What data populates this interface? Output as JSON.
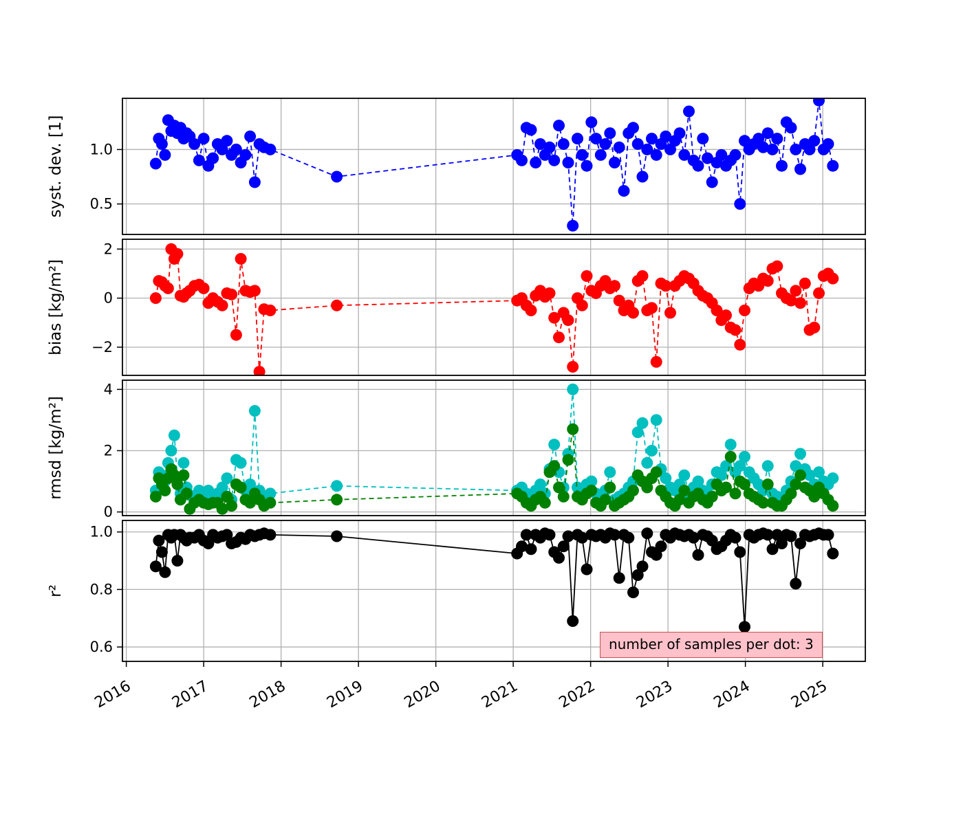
{
  "figure": {
    "background": "#ffffff",
    "annotation": {
      "text": "number of samples per dot: 3",
      "facecolor": "#ffc2cb",
      "edgecolor": "#c94f4f"
    }
  },
  "chart_data": {
    "type": "scatter",
    "title": "",
    "xlabel": "",
    "grid": true,
    "xlim": [
      2015.95,
      2025.55
    ],
    "xticks": [
      2016,
      2017,
      2018,
      2019,
      2020,
      2021,
      2022,
      2023,
      2024,
      2025
    ],
    "x": [
      2016.38,
      2016.42,
      2016.46,
      2016.5,
      2016.54,
      2016.58,
      2016.62,
      2016.66,
      2016.7,
      2016.74,
      2016.78,
      2016.82,
      2016.88,
      2016.94,
      2017.0,
      2017.06,
      2017.12,
      2017.18,
      2017.24,
      2017.3,
      2017.36,
      2017.42,
      2017.48,
      2017.54,
      2017.6,
      2017.66,
      2017.72,
      2017.78,
      2017.86,
      2018.72,
      2021.05,
      2021.11,
      2021.17,
      2021.23,
      2021.29,
      2021.35,
      2021.41,
      2021.47,
      2021.53,
      2021.59,
      2021.65,
      2021.71,
      2021.77,
      2021.83,
      2021.89,
      2021.95,
      2022.01,
      2022.07,
      2022.13,
      2022.19,
      2022.25,
      2022.31,
      2022.37,
      2022.43,
      2022.49,
      2022.55,
      2022.61,
      2022.67,
      2022.73,
      2022.79,
      2022.85,
      2022.91,
      2022.97,
      2023.03,
      2023.09,
      2023.15,
      2023.21,
      2023.27,
      2023.33,
      2023.39,
      2023.45,
      2023.51,
      2023.57,
      2023.63,
      2023.69,
      2023.75,
      2023.81,
      2023.87,
      2023.93,
      2023.99,
      2024.05,
      2024.11,
      2024.17,
      2024.23,
      2024.29,
      2024.35,
      2024.41,
      2024.47,
      2024.53,
      2024.59,
      2024.65,
      2024.71,
      2024.77,
      2024.83,
      2024.89,
      2024.95,
      2025.01,
      2025.07,
      2025.13
    ],
    "panels": [
      {
        "ylabel": "syst. dev. [1]",
        "ylim": [
          0.22,
          1.47
        ],
        "yticks": [
          0.5,
          1.0
        ],
        "yticklabels": [
          "0.5",
          "1.0"
        ],
        "series": [
          {
            "name": "syst_dev",
            "color": "#0000ff",
            "linestyle": "dashed",
            "marker": "o",
            "values": [
              0.87,
              1.1,
              1.05,
              0.95,
              1.27,
              1.17,
              1.22,
              1.15,
              1.2,
              1.1,
              1.15,
              1.12,
              1.05,
              0.9,
              1.1,
              0.85,
              0.92,
              1.05,
              1.0,
              1.08,
              0.95,
              1.0,
              0.88,
              0.95,
              1.12,
              0.7,
              1.05,
              1.02,
              1.0,
              0.75,
              0.95,
              0.9,
              1.2,
              1.18,
              0.88,
              1.05,
              0.95,
              1.02,
              0.9,
              1.22,
              1.05,
              0.88,
              0.3,
              1.1,
              0.95,
              0.85,
              1.25,
              1.1,
              0.95,
              1.05,
              1.15,
              0.88,
              1.02,
              0.62,
              1.15,
              1.2,
              1.05,
              0.75,
              1.0,
              1.1,
              0.95,
              1.05,
              1.12,
              1.0,
              1.08,
              1.15,
              0.95,
              1.35,
              0.9,
              0.85,
              1.1,
              0.92,
              0.7,
              0.88,
              0.95,
              0.85,
              0.9,
              0.95,
              0.5,
              1.08,
              1.0,
              1.05,
              1.1,
              1.02,
              1.15,
              1.0,
              1.1,
              0.85,
              1.25,
              1.2,
              1.0,
              0.82,
              1.05,
              1.0,
              1.08,
              1.45,
              1.0,
              1.05,
              0.85
            ]
          }
        ]
      },
      {
        "ylabel": "bias [kg/m²]",
        "ylim": [
          -3.15,
          2.4
        ],
        "yticks": [
          -2,
          0,
          2
        ],
        "yticklabels": [
          "−2",
          "0",
          "2"
        ],
        "series": [
          {
            "name": "bias",
            "color": "#ff0000",
            "linestyle": "dashed",
            "marker": "o",
            "values": [
              0.0,
              0.7,
              0.65,
              0.5,
              0.4,
              2.0,
              1.6,
              1.8,
              0.1,
              0.05,
              0.2,
              0.3,
              0.5,
              0.55,
              0.4,
              -0.2,
              0.0,
              -0.15,
              -0.3,
              0.2,
              0.15,
              -1.5,
              1.6,
              0.3,
              0.25,
              0.3,
              -3.0,
              -0.45,
              -0.5,
              -0.3,
              -0.1,
              0.0,
              -0.3,
              -0.5,
              0.1,
              0.3,
              0.05,
              0.2,
              -0.8,
              -1.6,
              -0.6,
              -0.9,
              -2.8,
              0.0,
              -0.3,
              0.9,
              0.3,
              0.2,
              0.5,
              0.7,
              0.4,
              0.5,
              -0.1,
              -0.5,
              -0.3,
              -0.6,
              0.7,
              0.9,
              -0.5,
              -0.4,
              -2.6,
              0.6,
              0.5,
              -0.6,
              0.5,
              0.7,
              0.9,
              0.8,
              0.6,
              0.3,
              0.1,
              0.0,
              -0.2,
              -0.5,
              -0.9,
              -0.7,
              -1.2,
              -1.3,
              -1.9,
              -0.5,
              0.4,
              0.6,
              0.5,
              0.8,
              0.7,
              1.2,
              1.3,
              0.2,
              0.0,
              -0.1,
              0.3,
              -0.2,
              0.6,
              -1.3,
              -1.2,
              0.2,
              0.9,
              1.0,
              0.8
            ]
          }
        ]
      },
      {
        "ylabel": "rmsd [kg/m²]",
        "ylim": [
          -0.12,
          4.3
        ],
        "yticks": [
          0,
          2,
          4
        ],
        "yticklabels": [
          "0",
          "2",
          "4"
        ],
        "series": [
          {
            "name": "rmsd",
            "color": "#00bfbf",
            "linestyle": "dashed",
            "marker": "o",
            "values": [
              0.7,
              1.3,
              1.2,
              1.0,
              1.6,
              2.0,
              2.5,
              1.1,
              0.6,
              1.6,
              0.8,
              0.55,
              0.5,
              0.7,
              0.6,
              0.7,
              0.5,
              0.6,
              0.8,
              1.1,
              0.4,
              1.7,
              1.6,
              0.7,
              0.9,
              3.3,
              0.7,
              0.5,
              0.6,
              0.85,
              0.7,
              0.8,
              0.6,
              0.5,
              0.7,
              0.9,
              0.6,
              1.4,
              2.2,
              1.3,
              0.8,
              1.9,
              4.0,
              0.8,
              0.7,
              0.9,
              1.0,
              0.6,
              0.5,
              0.7,
              1.3,
              0.4,
              0.5,
              0.6,
              0.8,
              1.0,
              2.6,
              2.9,
              1.6,
              2.0,
              3.0,
              1.4,
              1.1,
              0.8,
              0.7,
              0.9,
              1.2,
              0.6,
              0.8,
              1.0,
              0.7,
              0.6,
              0.9,
              1.3,
              1.2,
              1.5,
              2.2,
              1.3,
              1.5,
              1.8,
              1.3,
              1.1,
              0.9,
              0.7,
              1.5,
              0.6,
              0.5,
              0.45,
              0.7,
              1.0,
              1.5,
              1.9,
              1.4,
              1.2,
              0.9,
              1.3,
              1.0,
              0.9,
              1.1
            ]
          },
          {
            "name": "rmsd_secondary",
            "color": "#008000",
            "linestyle": "dashed",
            "marker": "o",
            "values": [
              0.5,
              1.1,
              0.9,
              0.7,
              1.1,
              1.4,
              1.2,
              0.9,
              0.4,
              1.2,
              0.6,
              0.1,
              0.3,
              0.4,
              0.3,
              0.25,
              0.3,
              0.3,
              0.1,
              0.5,
              0.2,
              0.9,
              0.8,
              0.4,
              0.3,
              0.6,
              0.4,
              0.2,
              0.3,
              0.4,
              0.6,
              0.5,
              0.3,
              0.2,
              0.4,
              0.5,
              0.3,
              1.3,
              1.5,
              0.8,
              0.5,
              1.7,
              2.7,
              0.5,
              0.4,
              0.6,
              0.7,
              0.3,
              0.2,
              0.4,
              0.8,
              0.2,
              0.3,
              0.4,
              0.5,
              0.7,
              1.2,
              1.0,
              0.8,
              1.1,
              1.3,
              0.7,
              0.5,
              0.3,
              0.2,
              0.4,
              0.7,
              0.3,
              0.5,
              0.6,
              0.4,
              0.3,
              0.5,
              0.9,
              0.7,
              0.8,
              1.8,
              0.6,
              1.0,
              0.9,
              0.6,
              0.5,
              0.4,
              0.3,
              0.9,
              0.3,
              0.2,
              0.2,
              0.4,
              0.6,
              0.9,
              1.2,
              0.8,
              0.7,
              0.5,
              0.8,
              0.6,
              0.4,
              0.2
            ]
          }
        ]
      },
      {
        "ylabel": "r²",
        "ylim": [
          0.55,
          1.04
        ],
        "yticks": [
          0.6,
          0.8,
          1.0
        ],
        "yticklabels": [
          "0.6",
          "0.8",
          "1.0"
        ],
        "series": [
          {
            "name": "r_squared",
            "color": "#000000",
            "linestyle": "solid",
            "marker": "o",
            "values": [
              0.88,
              0.97,
              0.93,
              0.86,
              0.99,
              0.98,
              0.99,
              0.9,
              0.99,
              0.98,
              0.97,
              0.98,
              0.98,
              0.99,
              0.97,
              0.96,
              0.99,
              0.98,
              0.985,
              0.99,
              0.96,
              0.965,
              0.98,
              0.975,
              0.99,
              0.985,
              0.99,
              0.995,
              0.99,
              0.985,
              0.925,
              0.95,
              0.99,
              0.94,
              0.99,
              0.98,
              0.995,
              0.99,
              0.93,
              0.91,
              0.95,
              0.985,
              0.69,
              0.99,
              0.98,
              0.87,
              0.99,
              0.985,
              0.99,
              0.98,
              0.995,
              0.99,
              0.84,
              0.99,
              0.98,
              0.79,
              0.85,
              0.88,
              0.995,
              0.93,
              0.92,
              0.95,
              0.99,
              0.98,
              0.995,
              0.99,
              0.985,
              0.99,
              0.98,
              0.92,
              0.99,
              0.985,
              0.97,
              0.94,
              0.95,
              0.97,
              0.99,
              0.98,
              0.93,
              0.67,
              0.99,
              0.98,
              0.99,
              0.995,
              0.99,
              0.94,
              0.99,
              0.96,
              0.99,
              0.985,
              0.82,
              0.96,
              0.99,
              0.985,
              0.99,
              0.995,
              0.99,
              0.99,
              0.925
            ]
          }
        ]
      }
    ]
  }
}
